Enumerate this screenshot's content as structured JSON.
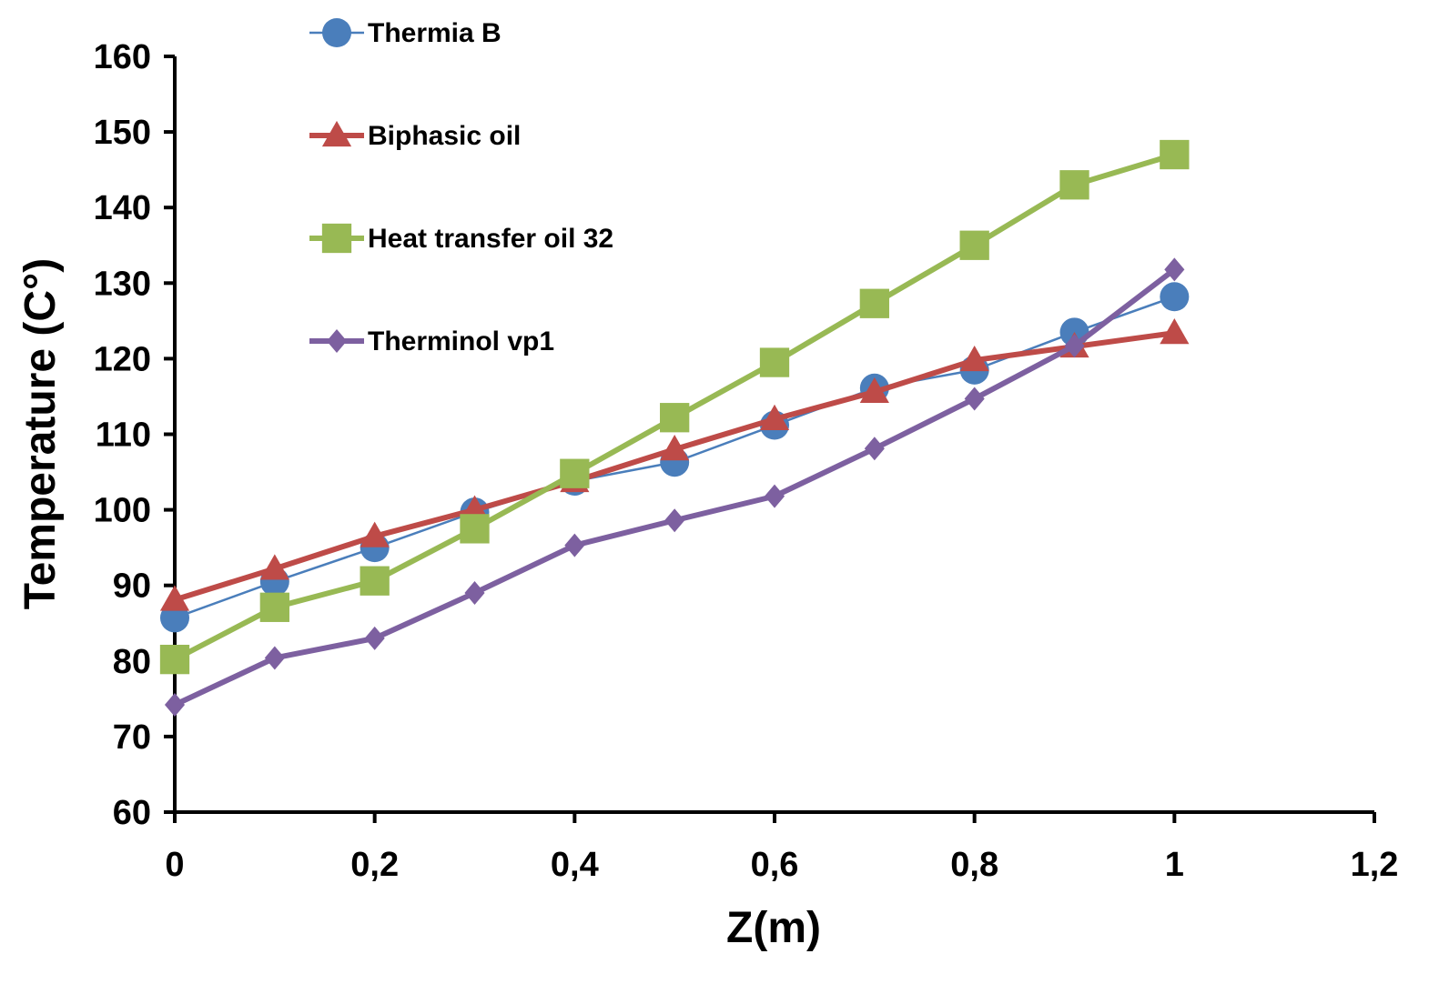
{
  "chart_data": {
    "type": "line",
    "title": "",
    "xlabel": "Z(m)",
    "ylabel": "Temperature (C°)",
    "xlim": [
      0,
      1.2
    ],
    "ylim": [
      60,
      160
    ],
    "xticks": [
      0,
      0.2,
      0.4,
      0.6,
      0.8,
      1,
      1.2
    ],
    "xtick_labels": [
      "0",
      "0,2",
      "0,4",
      "0,6",
      "0,8",
      "1",
      "1,2"
    ],
    "yticks": [
      60,
      70,
      80,
      90,
      100,
      110,
      120,
      130,
      140,
      150,
      160
    ],
    "ytick_labels": [
      "60",
      "70",
      "80",
      "90",
      "100",
      "110",
      "120",
      "130",
      "140",
      "150",
      "160"
    ],
    "grid": false,
    "legend_position": "top-left",
    "x": [
      0,
      0.1,
      0.2,
      0.3,
      0.4,
      0.5,
      0.6,
      0.7,
      0.8,
      0.9,
      1
    ],
    "series": [
      {
        "name": "Thermia B",
        "color": "#4a7ebb",
        "marker": "circle",
        "line_weight": "thin",
        "values": [
          85.7,
          90.5,
          95,
          99.7,
          103.8,
          106.3,
          111.2,
          116.1,
          118.5,
          123.5,
          128.2
        ]
      },
      {
        "name": "Biphasic oil",
        "color": "#be4b48",
        "marker": "triangle",
        "line_weight": "thick",
        "values": [
          88.1,
          92.2,
          96.5,
          100,
          103.8,
          108,
          112,
          115.6,
          119.8,
          121.6,
          123.4
        ]
      },
      {
        "name": "Heat transfer oil 32",
        "color": "#98b954",
        "marker": "square",
        "line_weight": "thick",
        "values": [
          80.2,
          87.1,
          90.6,
          97.5,
          104.8,
          112.2,
          119.5,
          127.3,
          135,
          143,
          147
        ]
      },
      {
        "name": "Therminol vp1",
        "color": "#7d60a0",
        "marker": "diamond",
        "line_weight": "thick",
        "values": [
          74.2,
          80.4,
          83,
          89,
          95.3,
          98.6,
          101.8,
          108.1,
          114.7,
          121.7,
          131.8
        ]
      }
    ]
  }
}
